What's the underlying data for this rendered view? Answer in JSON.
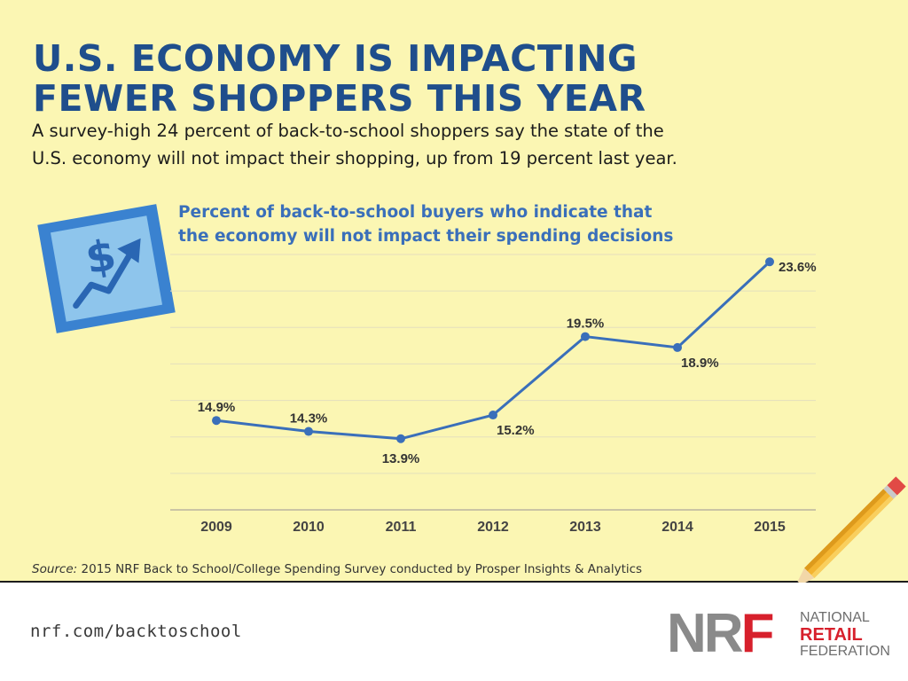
{
  "header": {
    "title_line1": "U.S. ECONOMY IS IMPACTING",
    "title_line2": "FEWER SHOPPERS THIS YEAR",
    "subtitle_line1": "A survey-high 24 percent of back-to-school shoppers say the state of the",
    "subtitle_line2": "U.S. economy will not impact their shopping, up from 19 percent last year."
  },
  "chart_heading": {
    "line1": "Percent of back-to-school buyers who indicate that",
    "line2": "the economy will not impact their spending decisions"
  },
  "chart_data": {
    "type": "line",
    "title": "Percent of back-to-school buyers who indicate that the economy will not impact their spending decisions",
    "categories": [
      "2009",
      "2010",
      "2011",
      "2012",
      "2013",
      "2014",
      "2015"
    ],
    "series": [
      {
        "name": "Percent of back-to-school buyers",
        "values": [
          14.9,
          14.3,
          13.9,
          15.2,
          19.5,
          18.9,
          23.6
        ],
        "labels": [
          "14.9%",
          "14.3%",
          "13.9%",
          "15.2%",
          "19.5%",
          "18.9%",
          "23.6%"
        ]
      }
    ],
    "label_positions": [
      "above",
      "above",
      "below",
      "below",
      "above",
      "below",
      "right"
    ],
    "ylim": [
      10,
      24
    ],
    "xlabel": "",
    "ylabel": "",
    "grid": true,
    "line_color": "#3a6fba"
  },
  "icon": {
    "name": "dollar-chart-icon",
    "glyph": "$"
  },
  "source": {
    "prefix": "Source:",
    "text": " 2015 NRF Back to School/College Spending Survey conducted by Prosper Insights & Analytics"
  },
  "footer": {
    "url": "nrf.com/backtoschool",
    "logo": {
      "mark": "NRF",
      "line1": "NATIONAL",
      "line2": "RETAIL",
      "line3": "FEDERATION",
      "brand_color": "#d7202c"
    }
  },
  "colors": {
    "background": "#fbf6b3",
    "title": "#1f4e8c",
    "accent": "#3a6fba",
    "icon_fill": "#8ec5ec"
  }
}
